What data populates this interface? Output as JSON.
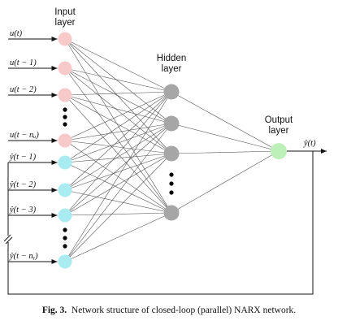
{
  "layers": {
    "input_title_line1": "Input",
    "input_title_line2": "layer",
    "hidden_title_line1": "Hidden",
    "hidden_title_line2": "layer",
    "output_title_line1": "Output",
    "output_title_line2": "layer"
  },
  "inputs": [
    {
      "label": "u(t)",
      "kind": "exogenous"
    },
    {
      "label": "u(t − 1)",
      "kind": "exogenous"
    },
    {
      "label": "u(t − 2)",
      "kind": "exogenous"
    },
    {
      "label": "u(t − nᵤ)",
      "kind": "exogenous"
    },
    {
      "label": "ŷ(t − 1)",
      "kind": "feedback"
    },
    {
      "label": "ŷ(t − 2)",
      "kind": "feedback"
    },
    {
      "label": "ŷ(t − 3)",
      "kind": "feedback"
    },
    {
      "label": "ŷ(t − nᵧ)",
      "kind": "feedback"
    }
  ],
  "hidden_node_count": 4,
  "output": {
    "label": "ŷ(t)"
  },
  "colors": {
    "exogenous_node": "#f7c9c9",
    "feedback_node": "#a8ecf2",
    "hidden_node": "#a6a6a6",
    "output_node": "#bdf0b8",
    "edges": "#555555"
  },
  "caption": {
    "label": "Fig. 3.",
    "text": "Network structure of closed-loop (parallel) NARX network."
  }
}
